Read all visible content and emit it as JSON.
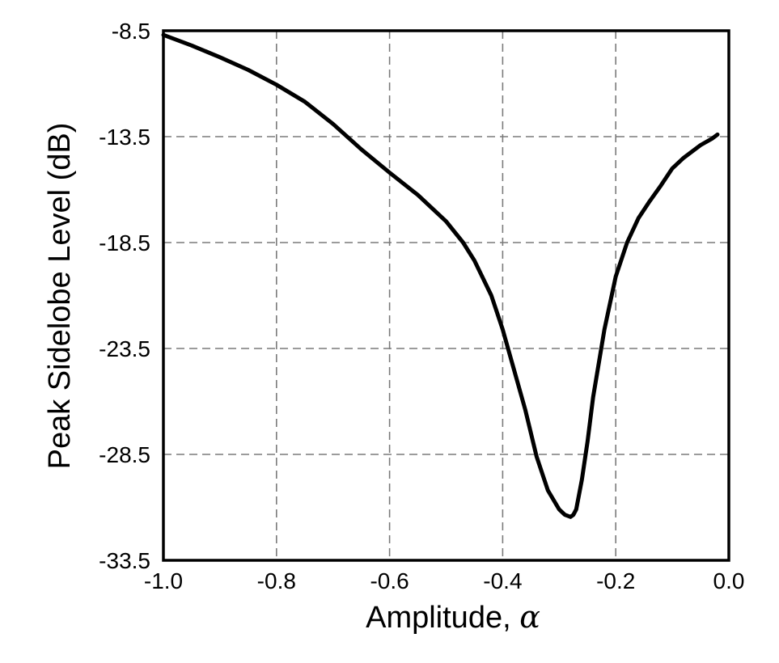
{
  "chart_data": {
    "type": "line",
    "title": "",
    "xlabel": "Amplitude, ",
    "xlabel_symbol": "α",
    "ylabel": "Peak Sidelobe Level (dB)",
    "xlim": [
      -1.0,
      0.0
    ],
    "ylim": [
      -33.5,
      -8.5
    ],
    "grid": true,
    "x_ticks": [
      -1.0,
      -0.8,
      -0.6,
      -0.4,
      -0.2,
      0.0
    ],
    "x_tick_labels": [
      "-1.0",
      "-0.8",
      "-0.6",
      "-0.4",
      "-0.2",
      "0.0"
    ],
    "y_ticks": [
      -8.5,
      -13.5,
      -18.5,
      -23.5,
      -28.5,
      -33.5
    ],
    "y_tick_labels": [
      "-8.5",
      "-13.5",
      "-18.5",
      "-23.5",
      "-28.5",
      "-33.5"
    ],
    "series": [
      {
        "x": [
          -1.0,
          -0.95,
          -0.9,
          -0.85,
          -0.8,
          -0.75,
          -0.7,
          -0.65,
          -0.6,
          -0.55,
          -0.5,
          -0.47,
          -0.45,
          -0.42,
          -0.4,
          -0.38,
          -0.36,
          -0.34,
          -0.32,
          -0.3,
          -0.29,
          -0.28,
          -0.275,
          -0.27,
          -0.26,
          -0.25,
          -0.24,
          -0.22,
          -0.2,
          -0.18,
          -0.16,
          -0.14,
          -0.12,
          -0.1,
          -0.08,
          -0.05,
          -0.03,
          -0.02
        ],
        "values": [
          -8.7,
          -9.2,
          -9.75,
          -10.35,
          -11.05,
          -11.85,
          -12.9,
          -14.1,
          -15.2,
          -16.25,
          -17.5,
          -18.5,
          -19.35,
          -21.0,
          -22.6,
          -24.5,
          -26.4,
          -28.6,
          -30.2,
          -31.1,
          -31.35,
          -31.45,
          -31.35,
          -31.1,
          -29.7,
          -27.9,
          -25.8,
          -22.6,
          -20.1,
          -18.5,
          -17.35,
          -16.55,
          -15.8,
          -15.0,
          -14.5,
          -13.9,
          -13.6,
          -13.4
        ]
      }
    ]
  }
}
